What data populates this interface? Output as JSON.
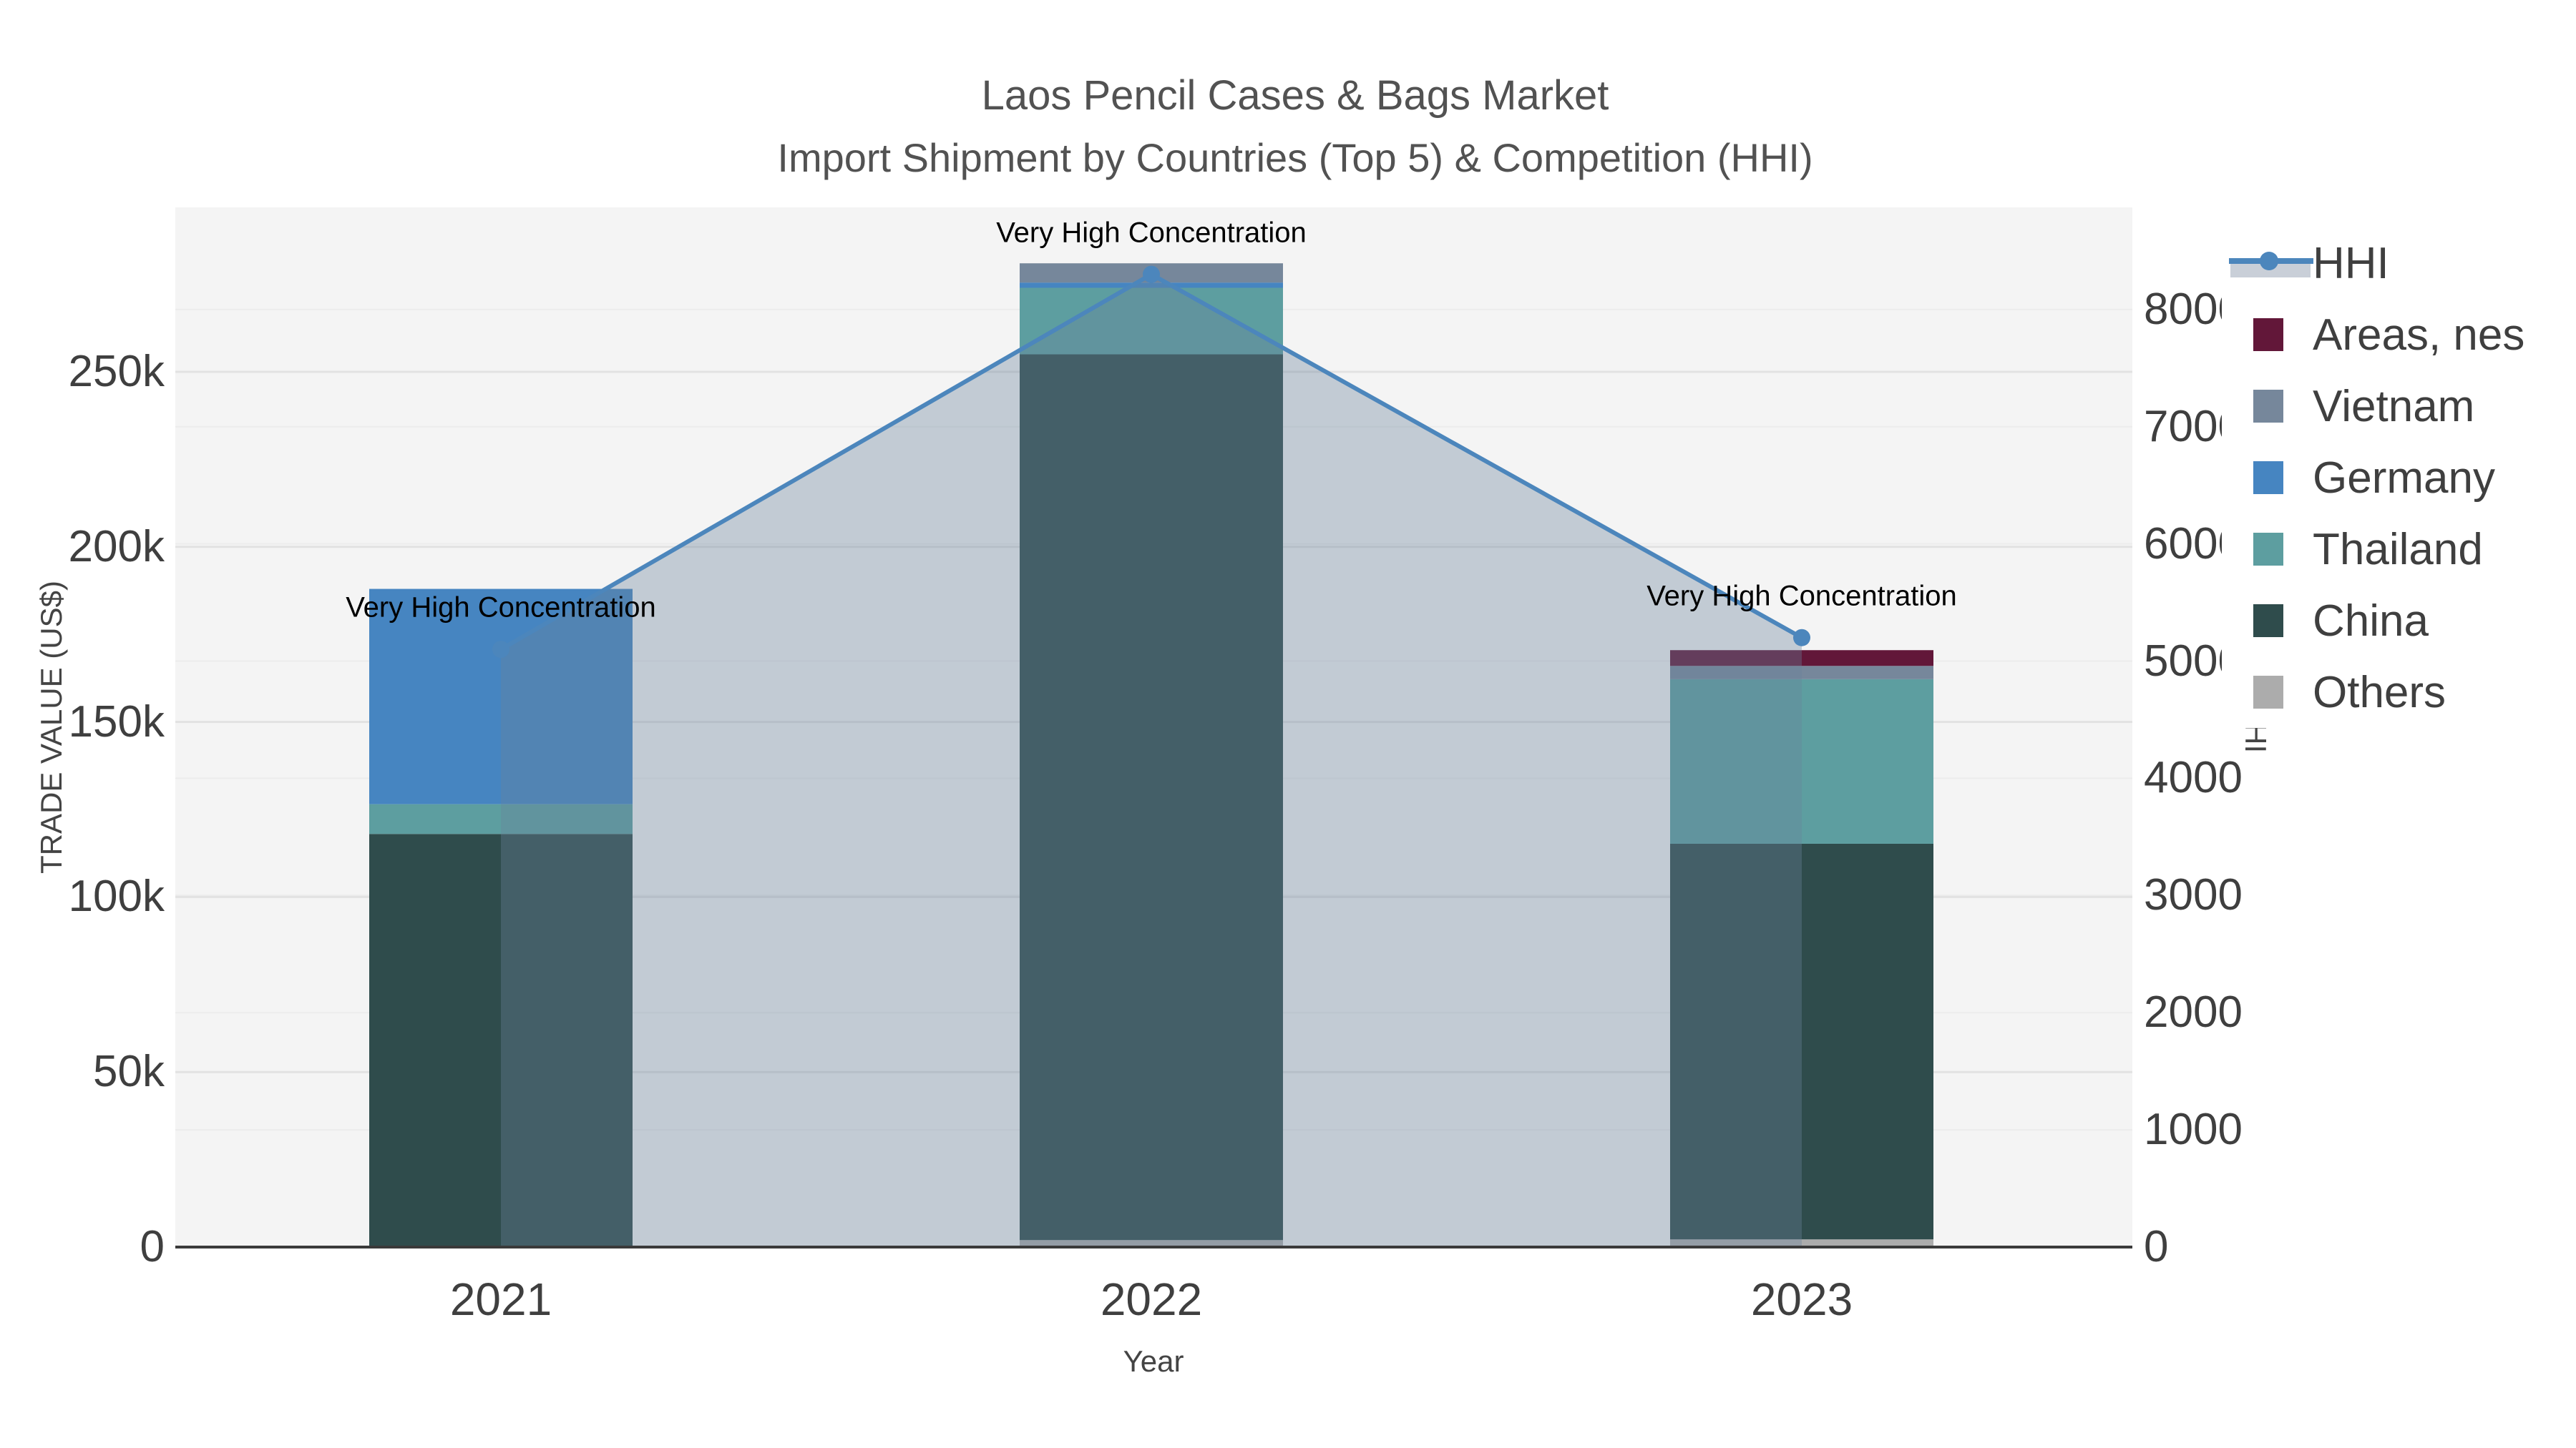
{
  "title": "Laos Pencil Cases & Bags Market",
  "subtitle": "Import Shipment by Countries (Top 5) & Competition (HHI)",
  "axes": {
    "left_title": "TRADE VALUE (US$)",
    "right_title": "HHI",
    "x_title": "Year"
  },
  "colors": {
    "plot_bg": "#f4f4f4",
    "grid_major": "#e2e2e2",
    "grid_minor": "#ececec",
    "axis_line": "#3a3a3a",
    "text": "#3f3f3f",
    "title_text": "#525252",
    "hhi_line": "#4c86bc",
    "hhi_area_fill": "rgba(105,130,155,0.36)"
  },
  "legend": {
    "items": [
      {
        "label": "HHI",
        "type": "line",
        "color": "#4c86bc",
        "area": "#c9cfd8"
      },
      {
        "label": "Areas, nes",
        "type": "swatch",
        "color": "#621739"
      },
      {
        "label": "Vietnam",
        "type": "swatch",
        "color": "#76879b"
      },
      {
        "label": "Germany",
        "type": "swatch",
        "color": "#4685c1"
      },
      {
        "label": "Thailand",
        "type": "swatch",
        "color": "#5d9ea0"
      },
      {
        "label": "China",
        "type": "swatch",
        "color": "#2f4c4c"
      },
      {
        "label": "Others",
        "type": "swatch",
        "color": "#acacac"
      }
    ]
  },
  "chart_data": {
    "type": "bar",
    "note": "stacked bars (trade value, left axis) + HHI line with shaded area (right axis); series listed bottom-to-top of stack",
    "categories": [
      "2021",
      "2022",
      "2023"
    ],
    "series": [
      {
        "name": "Others",
        "color": "#acacac",
        "values": [
          0,
          2000,
          2200
        ]
      },
      {
        "name": "China",
        "color": "#2f4c4c",
        "values": [
          118000,
          253000,
          113000
        ]
      },
      {
        "name": "Thailand",
        "color": "#5d9ea0",
        "values": [
          8500,
          19000,
          47000
        ]
      },
      {
        "name": "Germany",
        "color": "#4685c1",
        "values": [
          61500,
          1500,
          0
        ]
      },
      {
        "name": "Vietnam",
        "color": "#76879b",
        "values": [
          0,
          5500,
          3800
        ]
      },
      {
        "name": "Areas, nes",
        "color": "#621739",
        "values": [
          0,
          0,
          4500
        ]
      }
    ],
    "line_series": {
      "name": "HHI",
      "color": "#4c86bc",
      "values": [
        5100,
        8300,
        5200
      ]
    },
    "title": "Laos Pencil Cases & Bags Market",
    "subtitle": "Import Shipment by Countries (Top 5) & Competition (HHI)",
    "xlabel": "Year",
    "ylabel_left": "TRADE VALUE (US$)",
    "ylabel_right": "HHI",
    "y_left": {
      "ticks": [
        0,
        50000,
        100000,
        150000,
        200000,
        250000
      ],
      "tick_labels": [
        "0",
        "50k",
        "100k",
        "150k",
        "200k",
        "250k"
      ],
      "max": 297000
    },
    "y_right": {
      "ticks": [
        0,
        1000,
        2000,
        3000,
        4000,
        5000,
        6000,
        7000,
        8000
      ],
      "tick_labels": [
        "0",
        "1000",
        "2000",
        "3000",
        "4000",
        "5000",
        "6000",
        "7000",
        "8000"
      ],
      "max": 8870
    },
    "grid": true,
    "legend_position": "right",
    "annotations": [
      {
        "text": "Very High Concentration",
        "category": "2021"
      },
      {
        "text": "Very High Concentration",
        "category": "2022"
      },
      {
        "text": "Very High Concentration",
        "category": "2023"
      }
    ]
  }
}
